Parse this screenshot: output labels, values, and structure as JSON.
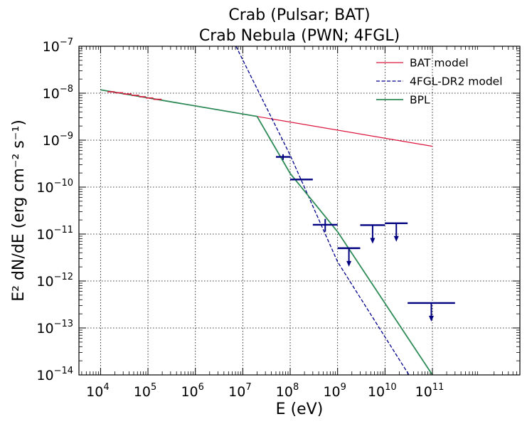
{
  "chart_data": {
    "type": "line",
    "title": [
      "Crab (Pulsar; BAT)",
      "Crab Nebula (PWN; 4FGL)"
    ],
    "xlabel": "E (eV)",
    "ylabel": "E² dN/dE (erg cm⁻² s⁻¹)",
    "xscale": "log",
    "yscale": "log",
    "xlim": [
      3500,
      7000000000000
    ],
    "ylim": [
      1e-14,
      1e-07
    ],
    "grid": true,
    "legend_position": "top-right",
    "x_ticks": [
      {
        "value": 10000,
        "base": "10",
        "exp": "4"
      },
      {
        "value": 100000,
        "base": "10",
        "exp": "5"
      },
      {
        "value": 1000000,
        "base": "10",
        "exp": "6"
      },
      {
        "value": 10000000,
        "base": "10",
        "exp": "7"
      },
      {
        "value": 100000000,
        "base": "10",
        "exp": "8"
      },
      {
        "value": 1000000000,
        "base": "10",
        "exp": "9"
      },
      {
        "value": 10000000000,
        "base": "10",
        "exp": "10"
      },
      {
        "value": 100000000000,
        "base": "10",
        "exp": "11"
      }
    ],
    "y_ticks": [
      {
        "value": 1e-14,
        "base": "10",
        "exp": "−14"
      },
      {
        "value": 1e-13,
        "base": "10",
        "exp": "−13"
      },
      {
        "value": 1e-12,
        "base": "10",
        "exp": "−12"
      },
      {
        "value": 1e-11,
        "base": "10",
        "exp": "−11"
      },
      {
        "value": 1e-10,
        "base": "10",
        "exp": "−10"
      },
      {
        "value": 1e-09,
        "base": "10",
        "exp": "−9"
      },
      {
        "value": 1e-08,
        "base": "10",
        "exp": "−8"
      },
      {
        "value": 1e-07,
        "base": "10",
        "exp": "−7"
      }
    ],
    "series": [
      {
        "name": "BAT model",
        "color": "#dc143c",
        "style": "solid",
        "x": [
          10000,
          100000000000
        ],
        "y": [
          1.18e-08,
          7.4e-10
        ]
      },
      {
        "name": "4FGL-DR2 model",
        "color": "#00008b",
        "style": "dashed",
        "x": [
          3000000,
          100000000,
          1000000000,
          32000000000
        ],
        "y": [
          5.87e-07,
          4.77e-10,
          2.56e-12,
          1e-14
        ]
      },
      {
        "name": "BPL",
        "color": "#2e8b57",
        "style": "solid",
        "x": [
          10000,
          20000000,
          100000000,
          1000000000,
          100000000000
        ],
        "y": [
          1.18e-08,
          3.2e-09,
          1.95e-10,
          1.12e-11,
          1e-14
        ]
      }
    ],
    "bat_data": {
      "color": "#dc143c",
      "points": [
        {
          "xlo": 14000,
          "xhi": 20000,
          "y": 1.07e-08
        },
        {
          "xlo": 20000,
          "xhi": 30000,
          "y": 1.02e-08
        },
        {
          "xlo": 30000,
          "xhi": 45000,
          "y": 9.6e-09
        },
        {
          "xlo": 45000,
          "xhi": 65000,
          "y": 9e-09
        },
        {
          "xlo": 65000,
          "xhi": 90000,
          "y": 8.4e-09
        },
        {
          "xlo": 90000,
          "xhi": 130000,
          "y": 7.9e-09
        },
        {
          "xlo": 130000,
          "xhi": 195000,
          "y": 7.4e-09
        }
      ]
    },
    "fermi_data": {
      "color": "#000080",
      "points": [
        {
          "xlo": 50000000,
          "xhi": 100000000,
          "y": 4.4e-10,
          "err_lo": 3.8e-10,
          "err_hi": 5e-10,
          "upper_limit": false
        },
        {
          "xlo": 100000000,
          "xhi": 300000000,
          "y": 1.45e-10,
          "upper_limit": false
        },
        {
          "xlo": 300000000,
          "xhi": 1000000000,
          "y": 1.58e-11,
          "err_lo": 1.12e-11,
          "err_hi": 2.1e-11,
          "upper_limit": false
        },
        {
          "xlo": 1000000000,
          "xhi": 3000000000,
          "y": 5e-12,
          "upper_limit": true
        },
        {
          "xlo": 3000000000,
          "xhi": 10000000000,
          "y": 1.55e-11,
          "upper_limit": true
        },
        {
          "xlo": 10000000000,
          "xhi": 30000000000,
          "y": 1.7e-11,
          "upper_limit": true
        },
        {
          "xlo": 30000000000,
          "xhi": 300000000000,
          "y": 3.4e-13,
          "upper_limit": true
        }
      ]
    }
  }
}
